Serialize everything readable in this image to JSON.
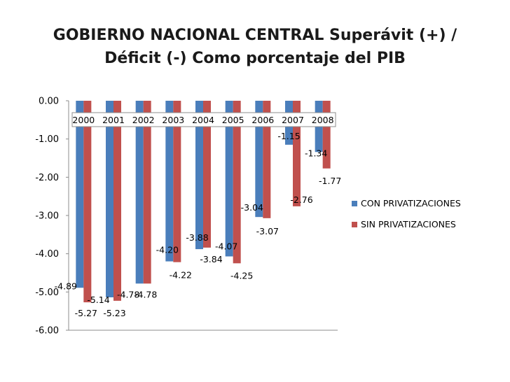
{
  "chart_data": {
    "type": "bar",
    "title": "GOBIERNO NACIONAL CENTRAL   Superávit (+) /\nDéficit (-)   Como porcentaje del PIB",
    "categories": [
      "2000",
      "2001",
      "2002",
      "2003",
      "2004",
      "2005",
      "2006",
      "2007",
      "2008"
    ],
    "series": [
      {
        "name": "CON PRIVATIZACIONES",
        "color": "#4a7ebb",
        "values": [
          -4.89,
          -5.14,
          -4.78,
          -4.2,
          -3.88,
          -4.07,
          -3.04,
          -1.15,
          -1.34
        ],
        "labels": [
          "-4.89",
          "-5.14",
          "-4.78",
          "-4.20",
          "-3.88",
          "-4.07",
          "-3.04",
          "-1.15",
          "-1.34"
        ]
      },
      {
        "name": "SIN PRIVATIZACIONES",
        "color": "#c0504d",
        "values": [
          -5.27,
          -5.23,
          -4.78,
          -4.22,
          -3.84,
          -4.25,
          -3.07,
          -2.76,
          -1.77
        ],
        "labels": [
          "-5.27",
          "-5.23",
          "-4.78",
          "-4.22",
          "-3.84",
          "-4.25",
          "-3.07",
          "-2.76",
          "-1.77"
        ]
      }
    ],
    "ylim": [
      -6,
      0
    ],
    "yticks": [
      "0.00",
      "-1.00",
      "-2.00",
      "-3.00",
      "-4.00",
      "-5.00",
      "-6.00"
    ],
    "ytick_values": [
      0,
      -1,
      -2,
      -3,
      -4,
      -5,
      -6
    ],
    "xlabel": "",
    "ylabel": "",
    "grid": false,
    "legend": "right"
  }
}
